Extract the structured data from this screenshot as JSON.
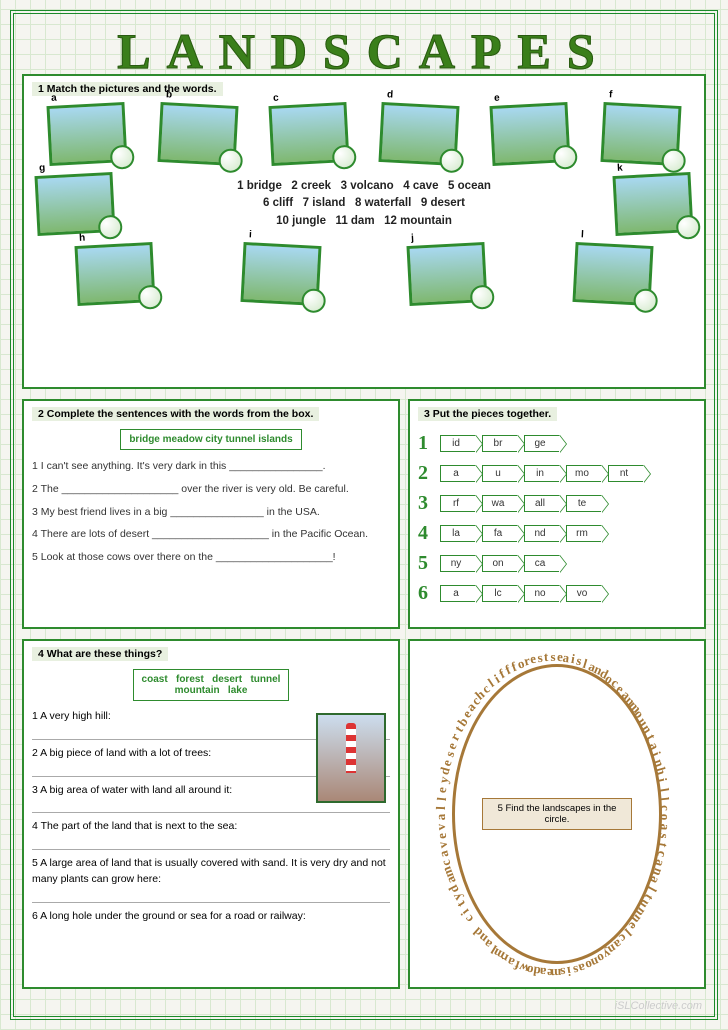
{
  "title": "LANDSCAPES",
  "watermark": "iSLCollective.com",
  "colors": {
    "border": "#2e8b2e",
    "title": "#3a7f1a",
    "oval": "#a67838"
  },
  "s1": {
    "instruction": "1 Match the pictures and the words.",
    "letters_top": [
      "a",
      "b",
      "c",
      "d",
      "e",
      "f"
    ],
    "letters_mid": [
      "g",
      "k"
    ],
    "letters_bot": [
      "h",
      "i",
      "j",
      "l"
    ],
    "vocab": "1 bridge   2 creek   3 volcano   4 cave   5 ocean\n6 cliff   7 island   8 waterfall   9 desert\n10 jungle   11 dam   12 mountain"
  },
  "s2": {
    "instruction": "2 Complete the sentences with the words from the box.",
    "box": "bridge   meadow   city   tunnel  islands",
    "items": [
      "1 I can't see anything. It's very dark in this ________________.",
      "2 The ____________________ over the river is very old. Be careful.",
      "3 My best friend lives in a big ________________ in the USA.",
      "4 There are lots of desert ____________________ in the Pacific Ocean.",
      "5 Look at those cows over there on the ____________________!"
    ]
  },
  "s3": {
    "instruction": "3 Put the pieces together.",
    "rows": [
      [
        "id",
        "br",
        "ge"
      ],
      [
        "a",
        "u",
        "in",
        "mo",
        "nt"
      ],
      [
        "rf",
        "wa",
        "all",
        "te"
      ],
      [
        "la",
        "fa",
        "nd",
        "rm"
      ],
      [
        "ny",
        "on",
        "ca"
      ],
      [
        "a",
        "lc",
        "no",
        "vo"
      ]
    ]
  },
  "s4": {
    "instruction": "4 What are these things?",
    "box": "coast   forest   desert   tunnel\nmountain   lake",
    "clues": [
      "1 A very high hill:",
      "2 A big piece of land with a lot of trees:",
      "3 A big area of water with land all around it:",
      "4 The part of the land that is next to the sea:",
      "5 A large area of land that is usually covered with sand. It is very dry and not many plants can grow here:",
      "6 A long hole under the ground or sea for a road or railway:"
    ]
  },
  "s5": {
    "instruction": "5 Find the landscapes  in the circle.",
    "circle_text": "seaislandoceanmountainhillcoastcanaltunnelcanyonoasismeadowfarmland citydamcavevalleydesertbeachcliffforest"
  }
}
